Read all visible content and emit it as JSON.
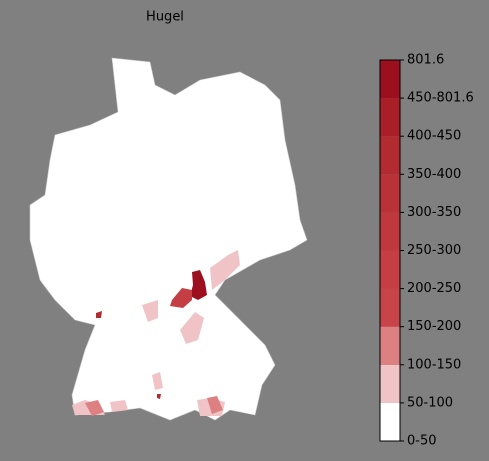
{
  "title": "Hugel",
  "colorbar": {
    "colors": [
      "#ffffff",
      "#f0c4c6",
      "#dd8082",
      "#c94448",
      "#c43e43",
      "#be383d",
      "#b83237",
      "#b22b31",
      "#a91f28",
      "#9c0f1f"
    ],
    "tick_labels": [
      "0-50",
      "50-100",
      "100-150",
      "150-200",
      "200-250",
      "250-300",
      "300-350",
      "350-400",
      "400-450",
      "450-801.6",
      "801.6"
    ]
  }
}
